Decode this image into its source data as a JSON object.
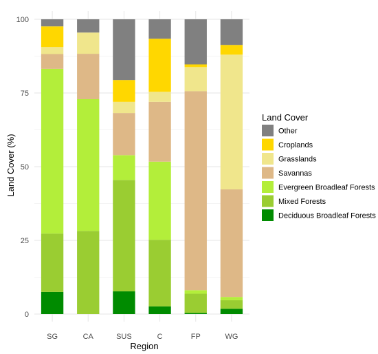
{
  "chart_data": {
    "type": "bar",
    "stacked": true,
    "title": "",
    "xlabel": "Region",
    "ylabel": "Land Cover (%)",
    "ylim": [
      0,
      100
    ],
    "yticks": [
      0,
      25,
      50,
      75,
      100
    ],
    "grid": true,
    "legend_position": "right",
    "legend_title": "Land Cover",
    "categories": [
      "SG",
      "CA",
      "SUS",
      "C",
      "FP",
      "WG"
    ],
    "series": [
      {
        "name": "Deciduous Broadleaf Forests",
        "color": "#008B00",
        "values": [
          7.5,
          0,
          7.7,
          2.6,
          0.4,
          1.8
        ]
      },
      {
        "name": "Mixed Forests",
        "color": "#9ACD32",
        "values": [
          19.8,
          28.2,
          37.8,
          22.6,
          6.5,
          2.9
        ]
      },
      {
        "name": "Evergreen Broadleaf Forests",
        "color": "#B3EE3A",
        "values": [
          55.9,
          44.7,
          8.4,
          26.5,
          1.2,
          1.1
        ]
      },
      {
        "name": "Savannas",
        "color": "#DEB887",
        "values": [
          5.0,
          15.4,
          14.3,
          20.3,
          67.5,
          36.5
        ]
      },
      {
        "name": "Grasslands",
        "color": "#F0E68C",
        "values": [
          2.4,
          7.2,
          3.8,
          3.4,
          8.2,
          45.7
        ]
      },
      {
        "name": "Croplands",
        "color": "#FFD700",
        "values": [
          7.0,
          0,
          7.4,
          18.0,
          0.9,
          3.3
        ]
      },
      {
        "name": "Other",
        "color": "#808080",
        "values": [
          2.4,
          4.5,
          20.6,
          6.6,
          15.3,
          8.7
        ]
      }
    ],
    "legend_order": [
      "Other",
      "Croplands",
      "Grasslands",
      "Savannas",
      "Evergreen Broadleaf Forests",
      "Mixed Forests",
      "Deciduous Broadleaf Forests"
    ]
  }
}
